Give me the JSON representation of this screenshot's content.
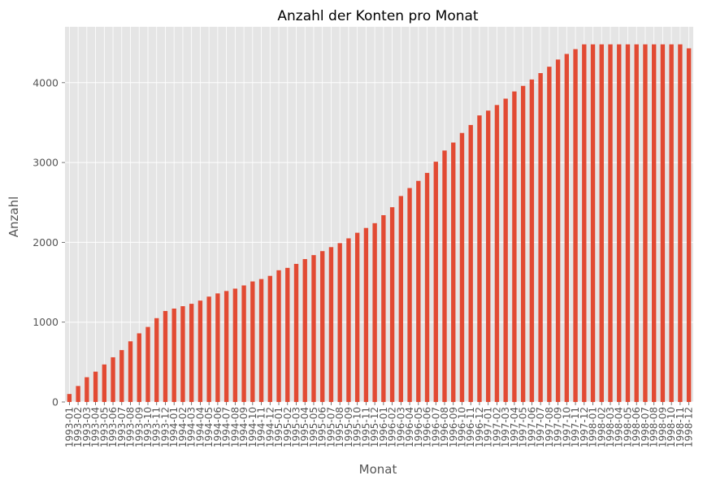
{
  "chart_data": {
    "type": "bar",
    "title": "Anzahl der Konten pro Monat",
    "xlabel": "Monat",
    "ylabel": "Anzahl",
    "ylim": [
      0,
      4700
    ],
    "yticks": [
      0,
      1000,
      2000,
      3000,
      4000
    ],
    "grid": true,
    "bar_color": "#E24A33",
    "plot_background": "#E5E5E5",
    "grid_color": "#FFFFFF",
    "categories": [
      "1993-01",
      "1993-02",
      "1993-03",
      "1993-04",
      "1993-05",
      "1993-06",
      "1993-07",
      "1993-08",
      "1993-09",
      "1993-10",
      "1993-11",
      "1993-12",
      "1994-01",
      "1994-02",
      "1994-03",
      "1994-04",
      "1994-05",
      "1994-06",
      "1994-07",
      "1994-08",
      "1994-09",
      "1994-10",
      "1994-11",
      "1994-12",
      "1995-01",
      "1995-02",
      "1995-03",
      "1995-04",
      "1995-05",
      "1995-06",
      "1995-07",
      "1995-08",
      "1995-09",
      "1995-10",
      "1995-11",
      "1995-12",
      "1996-01",
      "1996-02",
      "1996-03",
      "1996-04",
      "1996-05",
      "1996-06",
      "1996-07",
      "1996-08",
      "1996-09",
      "1996-10",
      "1996-11",
      "1996-12",
      "1997-01",
      "1997-02",
      "1997-03",
      "1997-04",
      "1997-05",
      "1997-06",
      "1997-07",
      "1997-08",
      "1997-09",
      "1997-10",
      "1997-11",
      "1997-12",
      "1998-01",
      "1998-02",
      "1998-03",
      "1998-04",
      "1998-05",
      "1998-06",
      "1998-07",
      "1998-08",
      "1998-09",
      "1998-10",
      "1998-11",
      "1998-12"
    ],
    "values": [
      100,
      200,
      310,
      380,
      470,
      560,
      650,
      760,
      860,
      940,
      1050,
      1140,
      1170,
      1200,
      1230,
      1270,
      1320,
      1360,
      1390,
      1420,
      1460,
      1510,
      1540,
      1580,
      1650,
      1680,
      1730,
      1790,
      1840,
      1890,
      1940,
      1990,
      2050,
      2120,
      2180,
      2240,
      2340,
      2440,
      2580,
      2680,
      2770,
      2870,
      3010,
      3150,
      3250,
      3370,
      3470,
      3590,
      3650,
      3720,
      3800,
      3890,
      3960,
      4040,
      4120,
      4200,
      4290,
      4360,
      4420,
      4480,
      4480,
      4480,
      4480,
      4480,
      4480,
      4480,
      4480,
      4480,
      4480,
      4480,
      4480,
      4430
    ]
  }
}
